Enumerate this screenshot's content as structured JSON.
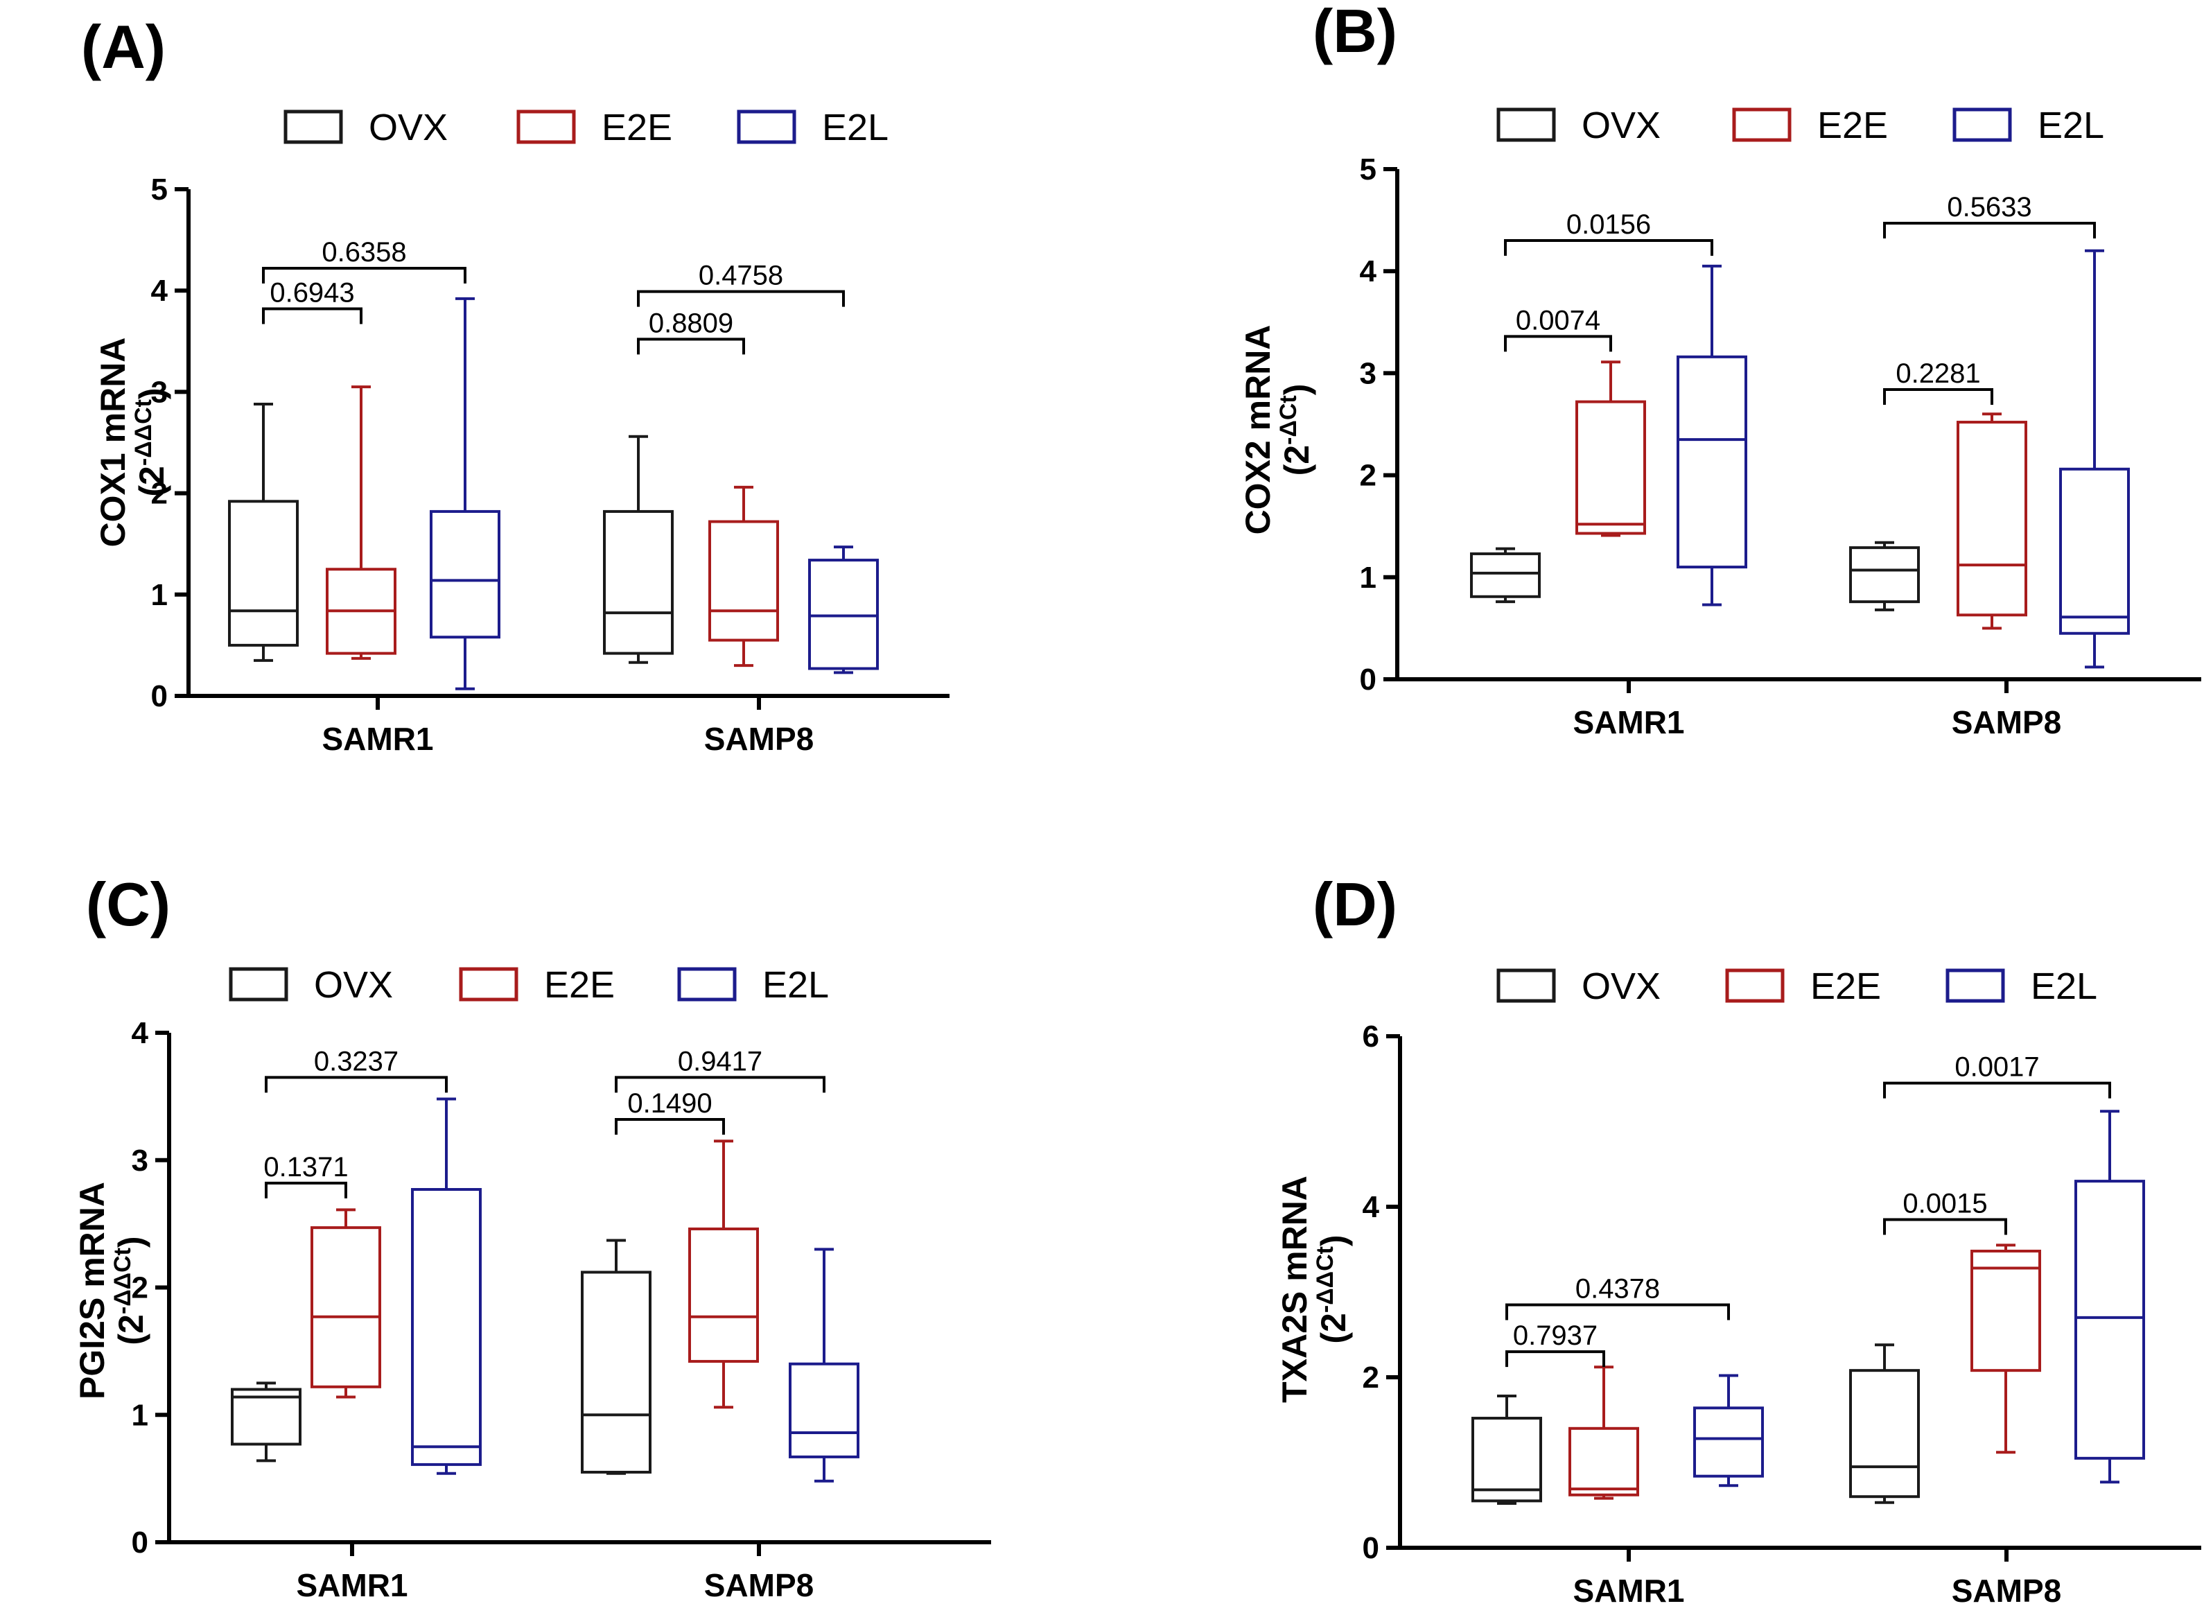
{
  "figure": {
    "legend": {
      "entries": [
        {
          "name": "OVX",
          "color": "#1a1a1a"
        },
        {
          "name": "E2E",
          "color": "#a81c1c"
        },
        {
          "name": "E2L",
          "color": "#1c1c8c"
        }
      ]
    }
  },
  "chart_data": [
    {
      "type": "box",
      "panel": "(A)",
      "ylabel": "COX1 mRNA",
      "ylabel_unit": "(2-ΔΔCt)",
      "unit_base": "(2",
      "unit_exp": "-ΔΔCt",
      "unit_close": ")",
      "ylim": [
        0,
        5
      ],
      "yticks": [
        "0",
        "1",
        "2",
        "3",
        "4",
        "5"
      ],
      "categories": [
        "SAMR1",
        "SAMP8"
      ],
      "series": [
        {
          "name": "OVX",
          "boxes": [
            {
              "min": 0.35,
              "q1": 0.5,
              "median": 0.84,
              "q3": 1.92,
              "max": 2.88
            },
            {
              "min": 0.33,
              "q1": 0.42,
              "median": 0.82,
              "q3": 1.82,
              "max": 2.56
            }
          ]
        },
        {
          "name": "E2E",
          "boxes": [
            {
              "min": 0.37,
              "q1": 0.42,
              "median": 0.84,
              "q3": 1.25,
              "max": 3.05
            },
            {
              "min": 0.3,
              "q1": 0.55,
              "median": 0.84,
              "q3": 1.72,
              "max": 2.06
            }
          ]
        },
        {
          "name": "E2L",
          "boxes": [
            {
              "min": 0.07,
              "q1": 0.58,
              "median": 1.14,
              "q3": 1.82,
              "max": 3.92
            },
            {
              "min": 0.23,
              "q1": 0.27,
              "median": 0.79,
              "q3": 1.34,
              "max": 1.47
            }
          ]
        }
      ],
      "comparisons": [
        {
          "group": "SAMR1",
          "from": "OVX",
          "to": "E2E",
          "y": 3.82,
          "p": "0.6943"
        },
        {
          "group": "SAMR1",
          "from": "OVX",
          "to": "E2L",
          "y": 4.22,
          "p": "0.6358"
        },
        {
          "group": "SAMP8",
          "from": "OVX",
          "to": "E2E",
          "y": 3.52,
          "p": "0.8809"
        },
        {
          "group": "SAMP8",
          "from": "OVX",
          "to": "E2L",
          "y": 3.99,
          "p": "0.4758"
        }
      ]
    },
    {
      "type": "box",
      "panel": "(B)",
      "ylabel": "COX2 mRNA",
      "ylabel_unit": "(2-ΔCt)",
      "unit_base": "(2",
      "unit_exp": "-ΔCt",
      "unit_close": ")",
      "ylim": [
        0,
        5
      ],
      "yticks": [
        "0",
        "1",
        "2",
        "3",
        "4",
        "5"
      ],
      "categories": [
        "SAMR1",
        "SAMP8"
      ],
      "series": [
        {
          "name": "OVX",
          "boxes": [
            {
              "min": 0.76,
              "q1": 0.81,
              "median": 1.04,
              "q3": 1.23,
              "max": 1.28
            },
            {
              "min": 0.68,
              "q1": 0.76,
              "median": 1.07,
              "q3": 1.29,
              "max": 1.34
            }
          ]
        },
        {
          "name": "E2E",
          "boxes": [
            {
              "min": 1.41,
              "q1": 1.43,
              "median": 1.52,
              "q3": 2.72,
              "max": 3.11
            },
            {
              "min": 0.5,
              "q1": 0.63,
              "median": 1.12,
              "q3": 2.52,
              "max": 2.6
            }
          ]
        },
        {
          "name": "E2L",
          "boxes": [
            {
              "min": 0.73,
              "q1": 1.1,
              "median": 2.35,
              "q3": 3.16,
              "max": 4.05
            },
            {
              "min": 0.12,
              "q1": 0.45,
              "median": 0.61,
              "q3": 2.06,
              "max": 4.2
            }
          ]
        }
      ],
      "comparisons": [
        {
          "group": "SAMR1",
          "from": "OVX",
          "to": "E2E",
          "y": 3.36,
          "p": "0.0074"
        },
        {
          "group": "SAMR1",
          "from": "OVX",
          "to": "E2L",
          "y": 4.3,
          "p": "0.0156"
        },
        {
          "group": "SAMP8",
          "from": "OVX",
          "to": "E2E",
          "y": 2.84,
          "p": "0.2281"
        },
        {
          "group": "SAMP8",
          "from": "OVX",
          "to": "E2L",
          "y": 4.47,
          "p": "0.5633"
        }
      ]
    },
    {
      "type": "box",
      "panel": "(C)",
      "ylabel": "PGI2S mRNA",
      "ylabel_unit": "(2-ΔΔCt)",
      "unit_base": "(2",
      "unit_exp": "-ΔΔCt",
      "unit_close": ")",
      "ylim": [
        0,
        4
      ],
      "yticks": [
        "0",
        "1",
        "2",
        "3",
        "4"
      ],
      "categories": [
        "SAMR1",
        "SAMP8"
      ],
      "series": [
        {
          "name": "OVX",
          "boxes": [
            {
              "min": 0.64,
              "q1": 0.77,
              "median": 1.14,
              "q3": 1.2,
              "max": 1.25
            },
            {
              "min": 0.54,
              "q1": 0.55,
              "median": 1.0,
              "q3": 2.12,
              "max": 2.37
            }
          ]
        },
        {
          "name": "E2E",
          "boxes": [
            {
              "min": 1.14,
              "q1": 1.22,
              "median": 1.77,
              "q3": 2.47,
              "max": 2.61
            },
            {
              "min": 1.06,
              "q1": 1.42,
              "median": 1.77,
              "q3": 2.46,
              "max": 3.15
            }
          ]
        },
        {
          "name": "E2L",
          "boxes": [
            {
              "min": 0.54,
              "q1": 0.61,
              "median": 0.75,
              "q3": 2.77,
              "max": 3.48
            },
            {
              "min": 0.48,
              "q1": 0.67,
              "median": 0.86,
              "q3": 1.4,
              "max": 2.3
            }
          ]
        }
      ],
      "comparisons": [
        {
          "group": "SAMR1",
          "from": "OVX",
          "to": "E2E",
          "y": 2.82,
          "p": "0.1371"
        },
        {
          "group": "SAMR1",
          "from": "OVX",
          "to": "E2L",
          "y": 3.65,
          "p": "0.3237"
        },
        {
          "group": "SAMP8",
          "from": "OVX",
          "to": "E2E",
          "y": 3.32,
          "p": "0.1490"
        },
        {
          "group": "SAMP8",
          "from": "OVX",
          "to": "E2L",
          "y": 3.65,
          "p": "0.9417"
        }
      ]
    },
    {
      "type": "box",
      "panel": "(D)",
      "ylabel": "TXA2S mRNA",
      "ylabel_unit": "(2-ΔΔCt)",
      "unit_base": "(2",
      "unit_exp": "-ΔΔCt",
      "unit_close": ")",
      "ylim": [
        0,
        6
      ],
      "yticks": [
        "0",
        "2",
        "4",
        "6"
      ],
      "categories": [
        "SAMR1",
        "SAMP8"
      ],
      "series": [
        {
          "name": "OVX",
          "boxes": [
            {
              "min": 0.52,
              "q1": 0.55,
              "median": 0.68,
              "q3": 1.52,
              "max": 1.78
            },
            {
              "min": 0.53,
              "q1": 0.6,
              "median": 0.95,
              "q3": 2.08,
              "max": 2.38
            }
          ]
        },
        {
          "name": "E2E",
          "boxes": [
            {
              "min": 0.58,
              "q1": 0.62,
              "median": 0.69,
              "q3": 1.4,
              "max": 2.12
            },
            {
              "min": 1.12,
              "q1": 2.08,
              "median": 3.28,
              "q3": 3.48,
              "max": 3.55
            }
          ]
        },
        {
          "name": "E2L",
          "boxes": [
            {
              "min": 0.73,
              "q1": 0.84,
              "median": 1.28,
              "q3": 1.64,
              "max": 2.02
            },
            {
              "min": 0.77,
              "q1": 1.05,
              "median": 2.7,
              "q3": 4.3,
              "max": 5.12
            }
          ]
        }
      ],
      "comparisons": [
        {
          "group": "SAMR1",
          "from": "OVX",
          "to": "E2E",
          "y": 2.3,
          "p": "0.7937"
        },
        {
          "group": "SAMR1",
          "from": "OVX",
          "to": "E2L",
          "y": 2.85,
          "p": "0.4378"
        },
        {
          "group": "SAMP8",
          "from": "OVX",
          "to": "E2E",
          "y": 3.85,
          "p": "0.0015"
        },
        {
          "group": "SAMP8",
          "from": "OVX",
          "to": "E2L",
          "y": 5.45,
          "p": "0.0017"
        }
      ]
    }
  ]
}
